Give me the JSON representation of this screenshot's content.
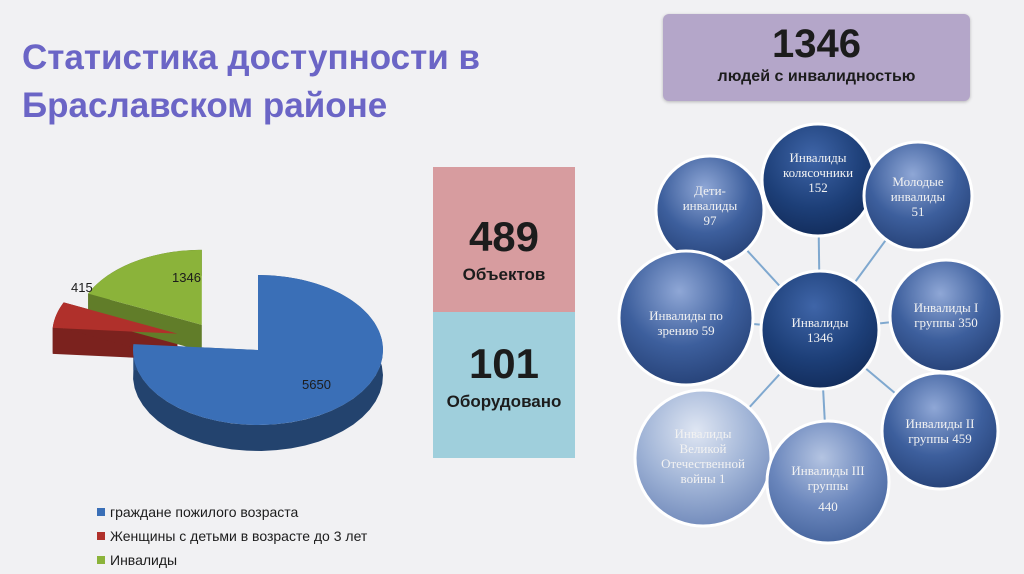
{
  "title": "Статистика доступности в Браславском районе",
  "total_box": {
    "value": "1346",
    "label": "людей с инвалидностью"
  },
  "objects_box": {
    "value": "489",
    "label": "Объектов"
  },
  "equipped_box": {
    "value": "101",
    "label": "Оборудовано"
  },
  "chart_data": {
    "type": "pie",
    "categories": [
      "граждане пожилого возраста",
      "Женщины с детьми  в возрасте до 3 лет",
      "Инвалиды"
    ],
    "values": [
      5650,
      415,
      1346
    ],
    "colors": [
      "#3a6fb7",
      "#b0302b",
      "#8bb33a"
    ],
    "data_labels": [
      "5650",
      "415",
      "1346"
    ],
    "legend_position": "bottom"
  },
  "diagram": {
    "center": {
      "title": "Инвалиды",
      "value": "1346"
    },
    "nodes": [
      {
        "lines": [
          "Дети-",
          "инвалиды",
          "97"
        ]
      },
      {
        "lines": [
          "Инвалиды",
          "колясочники",
          "152"
        ]
      },
      {
        "lines": [
          "Молодые",
          "инвалиды",
          "51"
        ]
      },
      {
        "lines": [
          "Инвалиды по",
          "зрению 59"
        ]
      },
      {
        "lines": [
          "Инвалиды I",
          "группы 350"
        ]
      },
      {
        "lines": [
          "Инвалиды",
          "Великой",
          "Отечественной",
          "войны 1"
        ]
      },
      {
        "lines": [
          "Инвалиды III",
          "группы",
          "",
          "440"
        ]
      },
      {
        "lines": [
          "Инвалиды II",
          "группы 459"
        ]
      }
    ]
  }
}
